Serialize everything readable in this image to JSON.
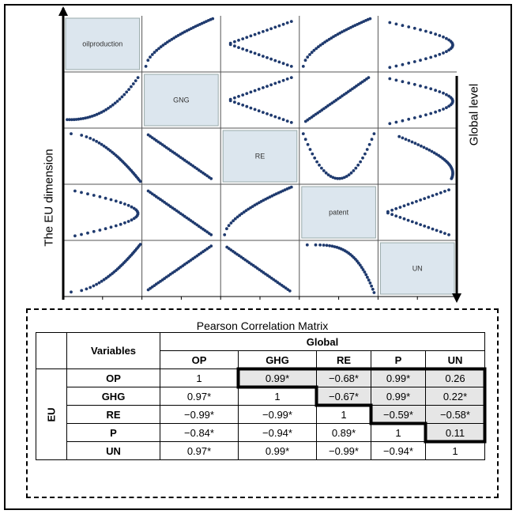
{
  "figure": {
    "left_axis_label": "The EU dimension",
    "right_axis_label": "Global level",
    "diagonal_labels": [
      "oilproduction",
      "GNG",
      "RE",
      "patent",
      "UN"
    ]
  },
  "table": {
    "title": "Pearson Correlation Matrix",
    "variables_header": "Variables",
    "global_header": "Global",
    "eu_header": "EU",
    "columns": [
      "OP",
      "GHG",
      "RE",
      "P",
      "UN"
    ],
    "rows": [
      {
        "label": "OP",
        "values": [
          "1",
          "0.99*",
          "−0.68*",
          "0.99*",
          "0.26"
        ]
      },
      {
        "label": "GHG",
        "values": [
          "0.97*",
          "1",
          "−0.67*",
          "0.99*",
          "0.22*"
        ]
      },
      {
        "label": "RE",
        "values": [
          "−0.99*",
          "−0.99*",
          "1",
          "−0.59*",
          "−0.58*"
        ]
      },
      {
        "label": "P",
        "values": [
          "−0.84*",
          "−0.94*",
          "0.89*",
          "1",
          "0.11"
        ]
      },
      {
        "label": "UN",
        "values": [
          "0.97*",
          "0.99*",
          "−0.99*",
          "−0.94*",
          "1"
        ]
      }
    ]
  },
  "colors": {
    "dots": "#1f3a6e",
    "diagonal_fill": "#dce6ee",
    "upper_fill": "#e6e6e6"
  },
  "panels": {
    "r0c1": "increasing concave",
    "r0c2": "sideways V",
    "r0c3": "increasing concave",
    "r0c4": "arc bulging right",
    "r1c0": "increasing convex",
    "r1c2": "sideways V",
    "r1c3": "increasing",
    "r1c4": "arc bulging right",
    "r2c0": "decreasing to right edge",
    "r2c1": "decreasing",
    "r2c3": "U shape",
    "r2c4": "arch then decline",
    "r3c0": "arc bulging right",
    "r3c1": "decreasing",
    "r3c2": "increasing concave",
    "r3c4": "sideways V",
    "r4c0": "increasing to right edge",
    "r4c1": "increasing",
    "r4c2": "decreasing",
    "r4c3": "decreasing to bottom right"
  }
}
